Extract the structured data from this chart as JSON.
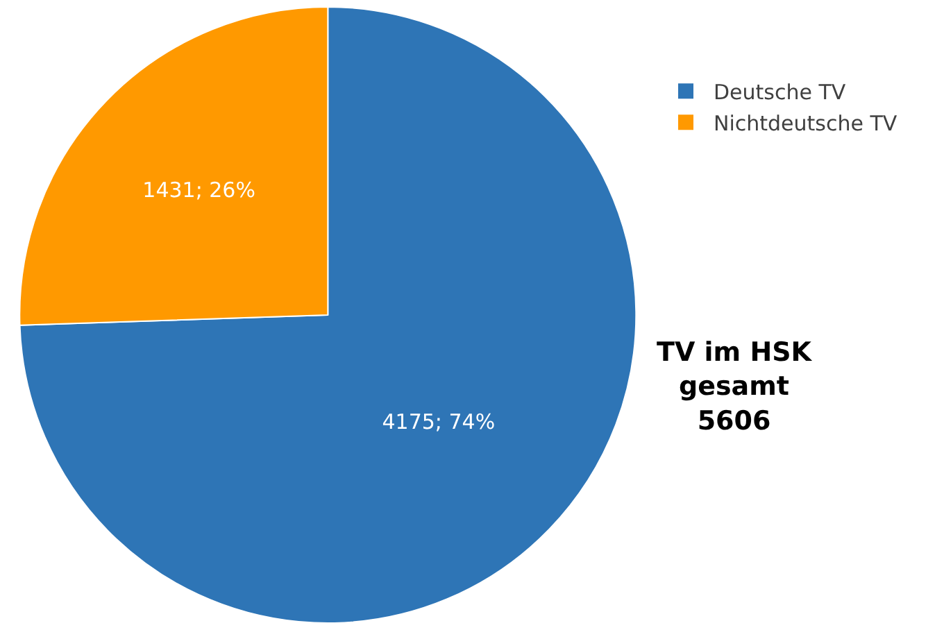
{
  "chart_data": {
    "type": "pie",
    "categories": [
      "Deutsche TV",
      "Nichtdeutsche TV"
    ],
    "values": [
      4175,
      1431
    ],
    "colors": [
      "#2e75b6",
      "#ff9900"
    ],
    "value_labels": [
      "4175; 74%",
      "1431; 26%"
    ],
    "legend": "top right",
    "annotations": [
      "TV im HSK\ngesamt\n5606"
    ]
  }
}
